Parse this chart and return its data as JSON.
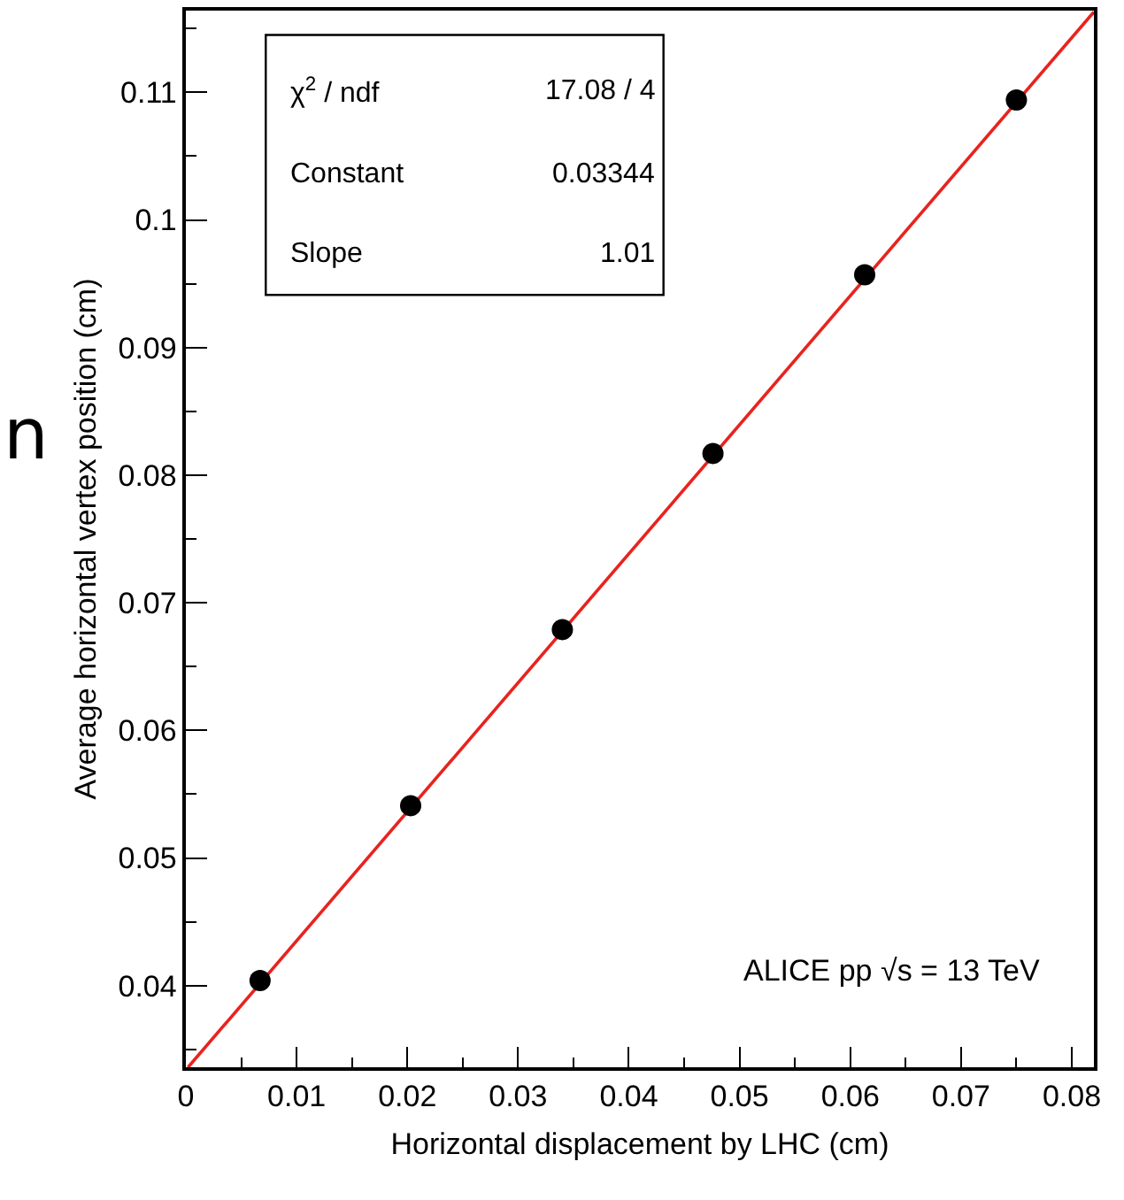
{
  "chart_data": {
    "type": "scatter",
    "xlabel": "Horizontal displacement by LHC (cm)",
    "ylabel": "Average horizontal vertex position (cm)",
    "series": [
      {
        "color": "#000000",
        "marker": "circle",
        "x": [
          0.0067,
          0.0203,
          0.034,
          0.0476,
          0.0613,
          0.075
        ],
        "values": [
          0.0404,
          0.0541,
          0.0679,
          0.0817,
          0.0957,
          0.1094
        ]
      },
      {
        "type": "line",
        "color": "#e8231f",
        "line_style": "solid",
        "x": [
          0.0002,
          0.082
        ],
        "values": [
          0.0336,
          0.1163
        ]
      }
    ],
    "xlim": [
      0,
      0.082
    ],
    "ylim": [
      0.0336,
      0.1164
    ],
    "xticks": [
      0,
      0.01,
      0.02,
      0.03,
      0.04,
      0.05,
      0.06,
      0.07,
      0.08
    ],
    "yticks": [
      0.04,
      0.05,
      0.06,
      0.07,
      0.08,
      0.09,
      0.1,
      0.11
    ],
    "grid": false,
    "legend": false,
    "annotations": [
      "χ$^{2}$ / ndf",
      "17.08 / 4",
      "Constant",
      "0.03344",
      "Slope",
      "1.01",
      "ALICE pp √s = 13 TeV",
      "n"
    ]
  }
}
